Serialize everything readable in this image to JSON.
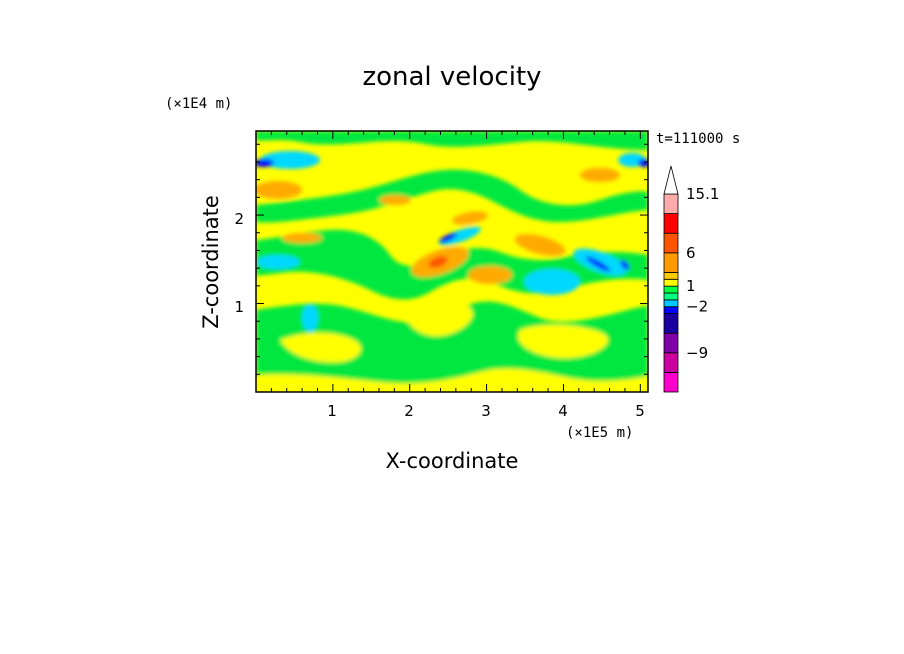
{
  "chart_data": {
    "type": "heatmap",
    "title": "zonal velocity",
    "xlabel": "X-coordinate",
    "ylabel": "Z-coordinate",
    "x_unit": "(×1E5 m)",
    "y_unit": "(×1E4 m)",
    "time_label": "t=111000 s",
    "xlim": [
      0,
      5.1
    ],
    "ylim": [
      0,
      2.95
    ],
    "x_ticks": [
      1,
      2,
      3,
      4,
      5
    ],
    "y_ticks": [
      1,
      2
    ],
    "grid": false,
    "colorbar": {
      "boundaries": [
        -15,
        -12,
        -9,
        -6,
        -3,
        -2,
        -1,
        0,
        1,
        2,
        3,
        6,
        9,
        12,
        15.1
      ],
      "colors": [
        "#ff00cc",
        "#cc00a0",
        "#8000a8",
        "#1a00a0",
        "#0000ff",
        "#00c8ff",
        "#00ff80",
        "#00ff40",
        "#ffff00",
        "#ffcc00",
        "#ff9900",
        "#ff5500",
        "#ff0000",
        "#ffaaaa"
      ],
      "labels": [
        {
          "value": 15.1,
          "text": "15.1"
        },
        {
          "value": 6,
          "text": "6"
        },
        {
          "value": 1,
          "text": "1"
        },
        {
          "value": -2,
          "text": "−2"
        },
        {
          "value": -9,
          "text": "−9"
        }
      ],
      "extend": "max"
    }
  },
  "axis": {
    "x_ticks_text": [
      "1",
      "2",
      "3",
      "4",
      "5"
    ],
    "y_ticks_text": [
      "1",
      "2"
    ]
  }
}
